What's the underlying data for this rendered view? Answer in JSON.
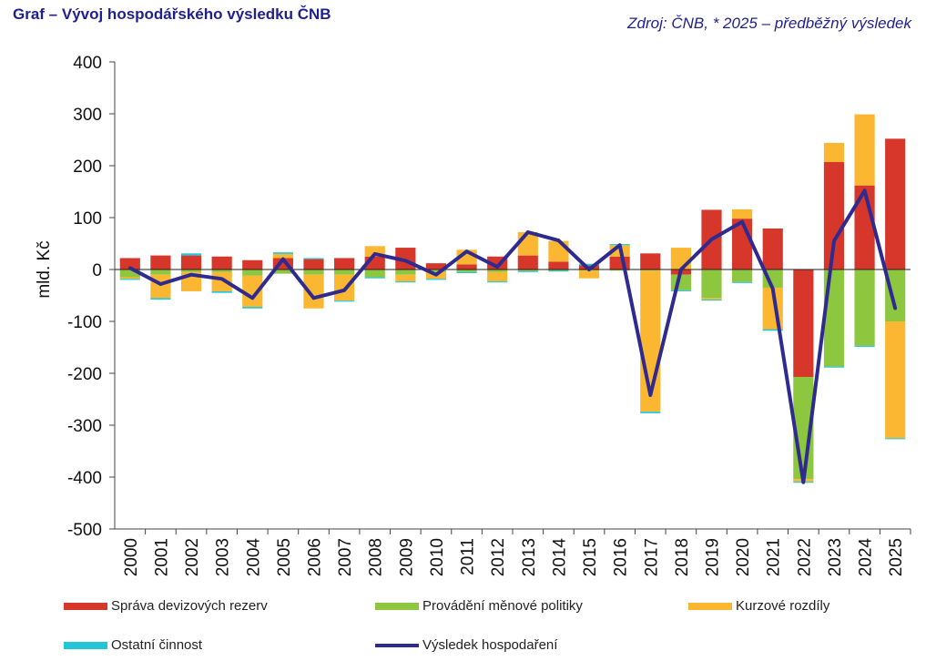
{
  "header": {
    "title": "Graf – Vývoj hospodářského výsledku ČNB",
    "source": "Zdroj: ČNB, * 2025 – předběžný výsledek"
  },
  "chart_data": {
    "type": "bar",
    "stacked": true,
    "title": "Graf – Vývoj hospodářského výsledku ČNB",
    "ylabel": "mld. Kč",
    "xlabel": "",
    "ylim": [
      -500,
      400
    ],
    "yticks": [
      400,
      300,
      200,
      100,
      0,
      -100,
      -200,
      -300,
      -400,
      -500
    ],
    "categories": [
      "2000",
      "2001",
      "2002",
      "2003",
      "2004",
      "2005",
      "2006",
      "2007",
      "2008",
      "2009",
      "2010",
      "2011",
      "2012",
      "2013",
      "2014",
      "2015",
      "2016",
      "2017",
      "2018",
      "2019",
      "2020",
      "2021",
      "2022",
      "2023",
      "2024",
      "2025"
    ],
    "series": [
      {
        "name": "Správa devizových rezerv",
        "color": "#d7372b",
        "values": [
          22,
          27,
          27,
          25,
          18,
          22,
          20,
          22,
          25,
          42,
          12,
          10,
          25,
          27,
          15,
          8,
          25,
          31,
          -10,
          115,
          98,
          79,
          -207,
          207,
          162,
          252
        ]
      },
      {
        "name": "Provádění měnové politiky",
        "color": "#8dc63f",
        "values": [
          -15,
          -10,
          -5,
          -5,
          -12,
          -8,
          -10,
          -10,
          -15,
          -10,
          -5,
          -5,
          -5,
          -3,
          -2,
          -2,
          -2,
          -2,
          -30,
          -55,
          -24,
          -35,
          -197,
          -187,
          -147,
          -100
        ]
      },
      {
        "name": "Kurzové rozdíly",
        "color": "#fbb731",
        "values": [
          -3,
          -45,
          -37,
          -37,
          -60,
          8,
          -65,
          -50,
          20,
          -13,
          -13,
          28,
          -18,
          45,
          40,
          -15,
          22,
          -272,
          42,
          -3,
          18,
          -80,
          -5,
          37,
          137,
          -225
        ]
      },
      {
        "name": "Ostatní činnost",
        "color": "#22c6d6",
        "values": [
          -2,
          -3,
          4,
          -3,
          -3,
          3,
          2,
          -2,
          -2,
          -2,
          -2,
          -2,
          -2,
          -2,
          -2,
          3,
          2,
          -3,
          -2,
          -2,
          -2,
          -3,
          -2,
          -2,
          -2,
          -2
        ]
      },
      {
        "name": "Výsledek hospodaření",
        "color": "#2e2a8f",
        "type": "line",
        "values": [
          3,
          -28,
          -10,
          -18,
          -55,
          20,
          -55,
          -40,
          30,
          17,
          -10,
          35,
          5,
          72,
          56,
          0,
          47,
          -242,
          0,
          58,
          92,
          -37,
          -410,
          55,
          152,
          -75
        ]
      }
    ],
    "legend_position": "bottom"
  }
}
